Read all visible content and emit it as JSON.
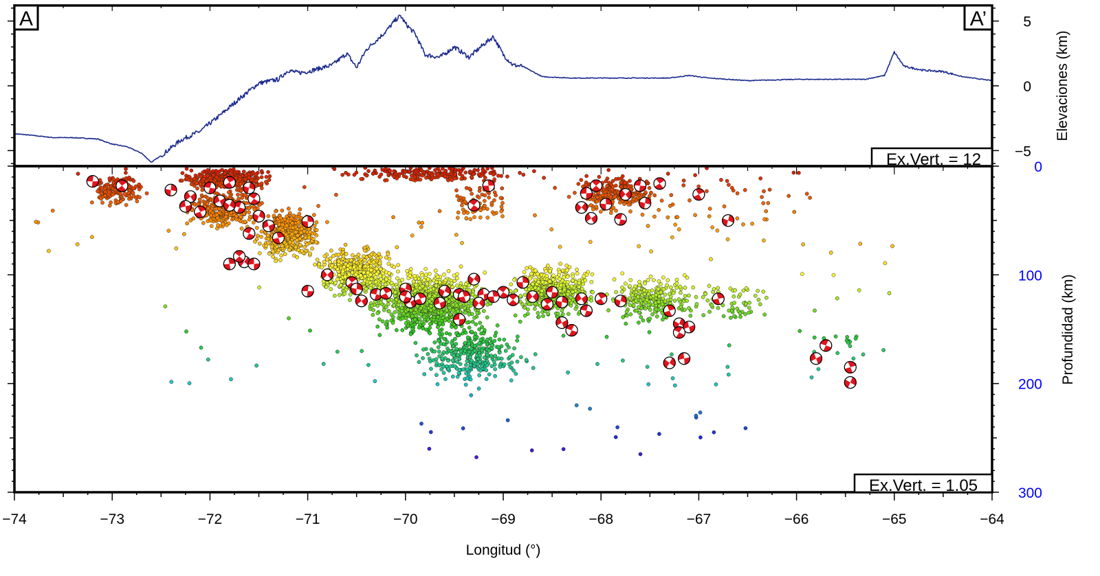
{
  "chart_data": [
    {
      "type": "line",
      "panel": "elevation-profile",
      "ylabel": "Elevaciones (km)",
      "xlim": [
        -74,
        -64
      ],
      "ylim": [
        -6.2,
        6.2
      ],
      "yticks": [
        -5,
        0,
        5
      ],
      "ytick_labels": [
        "−5",
        "0",
        "5"
      ],
      "label_left": "A",
      "label_right": "A’",
      "annotation": "Ex.Vert. = 12",
      "line_color": "#1a2a8c",
      "series": [
        {
          "x": [
            -74.0,
            -73.85,
            -73.6,
            -73.4,
            -73.15,
            -73.0,
            -72.85,
            -72.7,
            -72.6,
            -72.5,
            -72.3,
            -72.1,
            -71.9,
            -71.7,
            -71.5,
            -71.3,
            -71.2,
            -71.1,
            -71.0,
            -70.9,
            -70.75,
            -70.6,
            -70.5,
            -70.4,
            -70.3,
            -70.2,
            -70.1,
            -70.05,
            -70.0,
            -69.9,
            -69.8,
            -69.65,
            -69.5,
            -69.35,
            -69.2,
            -69.1,
            -69.0,
            -68.9,
            -68.8,
            -68.6,
            -68.3,
            -68.0,
            -67.7,
            -67.3,
            -67.1,
            -66.9,
            -66.5,
            -66.0,
            -65.6,
            -65.3,
            -65.1,
            -65.0,
            -64.9,
            -64.7,
            -64.5,
            -64.3,
            -64.0
          ],
          "y": [
            -3.7,
            -3.8,
            -4.0,
            -4.0,
            -4.1,
            -4.5,
            -4.7,
            -5.2,
            -5.9,
            -5.4,
            -4.2,
            -3.5,
            -2.3,
            -1.0,
            0.2,
            0.5,
            1.2,
            1.0,
            1.1,
            1.3,
            1.6,
            2.5,
            1.4,
            2.8,
            3.5,
            4.2,
            5.1,
            5.4,
            4.8,
            4.0,
            2.4,
            2.2,
            3.0,
            2.2,
            3.2,
            3.8,
            2.4,
            1.6,
            1.5,
            0.7,
            0.6,
            0.6,
            0.6,
            0.6,
            0.8,
            0.6,
            0.4,
            0.5,
            0.5,
            0.5,
            0.8,
            2.6,
            1.5,
            1.2,
            1.1,
            0.7,
            0.4
          ]
        }
      ]
    },
    {
      "type": "scatter",
      "panel": "depth-section",
      "xlabel": "Longitud (°)",
      "ylabel": "Profundidad (km)",
      "xlim": [
        -74,
        -64
      ],
      "ylim": [
        300,
        0
      ],
      "xticks": [
        -74,
        -73,
        -72,
        -71,
        -70,
        -69,
        -68,
        -67,
        -66,
        -65,
        -64
      ],
      "xtick_labels": [
        "−74",
        "−73",
        "−72",
        "−71",
        "−70",
        "−69",
        "−68",
        "−67",
        "−66",
        "−65",
        "−64"
      ],
      "yticks": [
        0,
        100,
        200,
        300
      ],
      "ytick_labels": [
        "0",
        "100",
        "200",
        "300"
      ],
      "ytick_color": "#0000ff",
      "annotation": "Ex.Vert. = 1.05",
      "color_scale": {
        "by": "depth",
        "colors": [
          "#d41400",
          "#ff8c00",
          "#ffff33",
          "#2ecc1e",
          "#1ec8c8",
          "#1e28dc",
          "#a000c8"
        ],
        "depth_range": [
          0,
          300
        ]
      },
      "point_clusters": [
        {
          "lon": [
            -73.3,
            -72.6
          ],
          "depth": [
            5,
            40
          ],
          "n": 160
        },
        {
          "lon": [
            -72.4,
            -71.3
          ],
          "depth": [
            0,
            25
          ],
          "n": 420
        },
        {
          "lon": [
            -72.3,
            -71.4
          ],
          "depth": [
            20,
            60
          ],
          "n": 360
        },
        {
          "lon": [
            -71.6,
            -70.8
          ],
          "depth": [
            35,
            90
          ],
          "n": 420
        },
        {
          "lon": [
            -71.0,
            -70.0
          ],
          "depth": [
            70,
            125
          ],
          "n": 450
        },
        {
          "lon": [
            -70.5,
            -69.0
          ],
          "depth": [
            90,
            160
          ],
          "n": 900
        },
        {
          "lon": [
            -69.0,
            -68.0
          ],
          "depth": [
            85,
            145
          ],
          "n": 500
        },
        {
          "lon": [
            -70.0,
            -68.6
          ],
          "depth": [
            140,
            205
          ],
          "n": 330
        },
        {
          "lon": [
            -68.0,
            -67.0
          ],
          "depth": [
            95,
            150
          ],
          "n": 220
        },
        {
          "lon": [
            -67.2,
            -66.3
          ],
          "depth": [
            110,
            140
          ],
          "n": 70
        },
        {
          "lon": [
            -71.0,
            -68.5
          ],
          "depth": [
            0,
            15
          ],
          "n": 200
        },
        {
          "lon": [
            -68.4,
            -67.3
          ],
          "depth": [
            5,
            45
          ],
          "n": 260
        },
        {
          "lon": [
            -69.5,
            -69.0
          ],
          "depth": [
            20,
            50
          ],
          "n": 70
        },
        {
          "lon": [
            -67.6,
            -65.8
          ],
          "depth": [
            5,
            60
          ],
          "n": 50
        },
        {
          "lon": [
            -65.9,
            -65.3
          ],
          "depth": [
            155,
            190
          ],
          "n": 18
        },
        {
          "lon": [
            -73.8,
            -65.6
          ],
          "depth": [
            0,
            80
          ],
          "n": 60
        },
        {
          "lon": [
            -72.5,
            -65.0
          ],
          "depth": [
            60,
            200
          ],
          "n": 70
        },
        {
          "lon": [
            -70.0,
            -66.5
          ],
          "depth": [
            200,
            275
          ],
          "n": 25
        }
      ],
      "focal_mechanisms": [
        [
          -73.2,
          14
        ],
        [
          -72.9,
          18
        ],
        [
          -72.4,
          22
        ],
        [
          -72.2,
          28
        ],
        [
          -72.0,
          20
        ],
        [
          -71.8,
          15
        ],
        [
          -71.6,
          20
        ],
        [
          -71.9,
          32
        ],
        [
          -71.7,
          38
        ],
        [
          -72.1,
          42
        ],
        [
          -71.5,
          46
        ],
        [
          -71.4,
          55
        ],
        [
          -71.6,
          62
        ],
        [
          -71.3,
          66
        ],
        [
          -71.8,
          36
        ],
        [
          -72.25,
          37
        ],
        [
          -71.55,
          30
        ],
        [
          -71.8,
          90
        ],
        [
          -71.65,
          88
        ],
        [
          -71.55,
          90
        ],
        [
          -71.7,
          83
        ],
        [
          -71.0,
          51
        ],
        [
          -70.8,
          100
        ],
        [
          -71.0,
          115
        ],
        [
          -70.55,
          107
        ],
        [
          -70.5,
          113
        ],
        [
          -70.45,
          124
        ],
        [
          -70.3,
          118
        ],
        [
          -70.2,
          117
        ],
        [
          -70.0,
          113
        ],
        [
          -69.95,
          125
        ],
        [
          -70.0,
          120
        ],
        [
          -69.85,
          122
        ],
        [
          -69.6,
          115
        ],
        [
          -69.65,
          126
        ],
        [
          -69.45,
          118
        ],
        [
          -69.4,
          120
        ],
        [
          -69.3,
          104
        ],
        [
          -69.2,
          118
        ],
        [
          -69.0,
          116
        ],
        [
          -69.1,
          120
        ],
        [
          -69.25,
          126
        ],
        [
          -69.45,
          141
        ],
        [
          -68.9,
          123
        ],
        [
          -68.8,
          107
        ],
        [
          -68.7,
          120
        ],
        [
          -68.5,
          116
        ],
        [
          -68.55,
          127
        ],
        [
          -68.4,
          125
        ],
        [
          -68.2,
          122
        ],
        [
          -68.15,
          133
        ],
        [
          -68.0,
          122
        ],
        [
          -67.8,
          124
        ],
        [
          -68.4,
          144
        ],
        [
          -68.3,
          151
        ],
        [
          -67.3,
          133
        ],
        [
          -67.2,
          145
        ],
        [
          -67.1,
          148
        ],
        [
          -67.2,
          153
        ],
        [
          -66.8,
          122
        ],
        [
          -67.3,
          181
        ],
        [
          -67.15,
          177
        ],
        [
          -69.3,
          36
        ],
        [
          -69.15,
          18
        ],
        [
          -68.2,
          38
        ],
        [
          -68.15,
          25
        ],
        [
          -68.05,
          18
        ],
        [
          -67.95,
          35
        ],
        [
          -67.75,
          26
        ],
        [
          -67.6,
          18
        ],
        [
          -67.4,
          16
        ],
        [
          -67.55,
          34
        ],
        [
          -68.1,
          48
        ],
        [
          -67.8,
          49
        ],
        [
          -67.0,
          26
        ],
        [
          -66.7,
          50
        ],
        [
          -65.8,
          177
        ],
        [
          -65.7,
          165
        ],
        [
          -65.45,
          185
        ],
        [
          -65.45,
          199
        ]
      ]
    }
  ]
}
